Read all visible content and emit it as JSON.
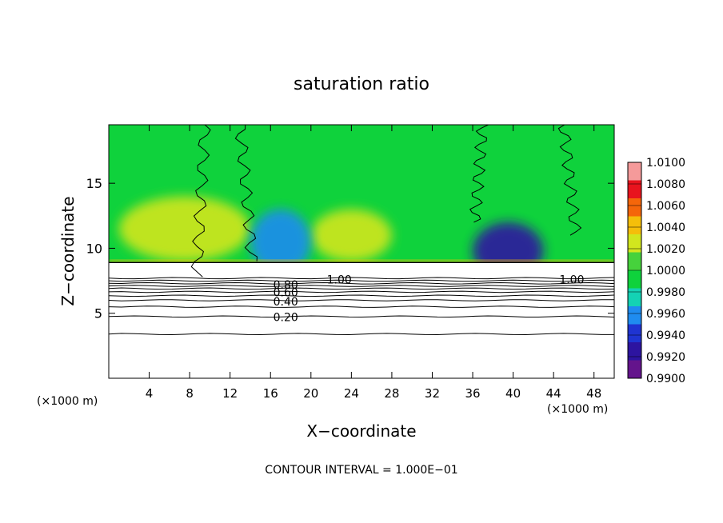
{
  "chart_data": {
    "type": "heatmap",
    "title": "saturation ratio",
    "xlabel": "X−coordinate",
    "ylabel": "Z−coordinate",
    "x_unit_left": "(×1000 m)",
    "x_unit_right": "(×1000 m)",
    "xlim": [
      0,
      50
    ],
    "ylim": [
      0,
      19.5
    ],
    "x_ticks": [
      {
        "v": 4,
        "label": "4"
      },
      {
        "v": 8,
        "label": "8"
      },
      {
        "v": 12,
        "label": "12"
      },
      {
        "v": 16,
        "label": "16"
      },
      {
        "v": 20,
        "label": "20"
      },
      {
        "v": 24,
        "label": "24"
      },
      {
        "v": 28,
        "label": "28"
      },
      {
        "v": 32,
        "label": "32"
      },
      {
        "v": 36,
        "label": "36"
      },
      {
        "v": 40,
        "label": "40"
      },
      {
        "v": 44,
        "label": "44"
      },
      {
        "v": 48,
        "label": "48"
      }
    ],
    "y_ticks": [
      {
        "v": 5,
        "label": "5"
      },
      {
        "v": 10,
        "label": "10"
      },
      {
        "v": 15,
        "label": "15"
      }
    ],
    "colorbar": {
      "min": 0.99,
      "max": 1.01,
      "labels": [
        "1.0100",
        "1.0080",
        "1.0060",
        "1.0040",
        "1.0020",
        "1.0000",
        "0.9980",
        "0.9960",
        "0.9940",
        "0.9920",
        "0.9900"
      ],
      "colors": [
        "#f59a9a",
        "#e8141e",
        "#f5660a",
        "#f5be0a",
        "#d2e61e",
        "#46d23c",
        "#0fd23c",
        "#14d2b4",
        "#1f8cf0",
        "#1f34d2",
        "#2d14a0",
        "#64148c"
      ]
    },
    "contour_interval": "CONTOUR INTERVAL = 1.000E−01",
    "contour_labels": [
      {
        "text": "1.00",
        "x": 22.8,
        "z": 7.6
      },
      {
        "text": "1.00",
        "x": 45.8,
        "z": 7.6
      },
      {
        "text": "0.80",
        "x": 17.5,
        "z": 7.2
      },
      {
        "text": "0.60",
        "x": 17.5,
        "z": 6.6
      },
      {
        "text": "0.40",
        "x": 17.5,
        "z": 5.9
      },
      {
        "text": "0.20",
        "x": 17.5,
        "z": 4.7
      }
    ],
    "contour_lines_below_cloud": [
      7.7,
      7.5,
      7.3,
      7.1,
      6.9,
      6.65,
      6.35,
      6.0,
      5.5,
      4.75,
      3.4
    ],
    "cloud_base_z": 8.9,
    "field_regions": [
      {
        "name": "background",
        "value": 0.9986
      },
      {
        "name": "supersaturated-band-x2-14",
        "x": [
          1,
          14
        ],
        "z": [
          9,
          14
        ],
        "value": 1.0025
      },
      {
        "name": "supersaturated-band-x20-28",
        "x": [
          20,
          28
        ],
        "z": [
          9,
          13
        ],
        "value": 1.002
      },
      {
        "name": "subsaturated-core-x38-42",
        "x": [
          36,
          43
        ],
        "z": [
          7.6,
          12
        ],
        "value": 0.9925
      },
      {
        "name": "subsaturated-x14-20",
        "x": [
          14,
          20
        ],
        "z": [
          8,
          13
        ],
        "value": 0.9965
      }
    ]
  }
}
